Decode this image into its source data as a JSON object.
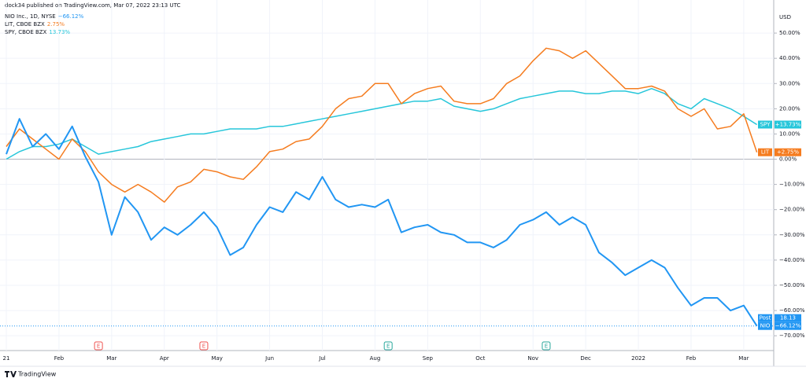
{
  "header": "dock34 published on TradingView.com, Mar 07, 2022 23:13 UTC",
  "footer": "TradingView",
  "chart_data": {
    "type": "line",
    "currency": "USD",
    "categories": [
      "21",
      null,
      null,
      null,
      "Feb",
      null,
      null,
      null,
      "Mar",
      null,
      null,
      null,
      "Apr",
      null,
      null,
      null,
      "May",
      null,
      null,
      null,
      "Jun",
      null,
      null,
      null,
      "Jul",
      null,
      null,
      null,
      "Aug",
      null,
      null,
      null,
      "Sep",
      null,
      null,
      null,
      "Oct",
      null,
      null,
      null,
      "Nov",
      null,
      null,
      null,
      "Dec",
      null,
      null,
      null,
      "2022",
      null,
      null,
      null,
      "Feb",
      null,
      null,
      null,
      "Mar",
      null
    ],
    "series": [
      {
        "name": "NIO Inc., 1D, NYSE",
        "short": "NIO",
        "color": "#2196f3",
        "change_label": "−66.12%",
        "badge_label": "−66.12%",
        "values": [
          2,
          16,
          5,
          10,
          4,
          13,
          1,
          -9,
          -30,
          -15,
          -21,
          -32,
          -27,
          -30,
          -26,
          -21,
          -27,
          -38,
          -35,
          -26,
          -19,
          -21,
          -13,
          -16,
          -7,
          -16,
          -19,
          -18,
          -19,
          -16,
          -29,
          -27,
          -26,
          -29,
          -30,
          -33,
          -33,
          -35,
          -32,
          -26,
          -24,
          -21,
          -26,
          -23,
          -26,
          -37,
          -41,
          -46,
          -43,
          -40,
          -43,
          -51,
          -58,
          -55,
          -55,
          -60,
          -58,
          -66.12
        ]
      },
      {
        "name": "LIT, CBOE BZX",
        "short": "LIT",
        "color": "#f57c1f",
        "change_label": "2.75%",
        "badge_label": "+2.75%",
        "values": [
          5,
          12,
          8,
          4,
          0,
          8,
          3,
          -5,
          -10,
          -13,
          -10,
          -13,
          -17,
          -11,
          -9,
          -4,
          -5,
          -7,
          -8,
          -3,
          3,
          4,
          7,
          8,
          13,
          20,
          24,
          25,
          30,
          30,
          22,
          26,
          28,
          29,
          23,
          22,
          22,
          24,
          30,
          33,
          39,
          44,
          43,
          40,
          43,
          38,
          33,
          28,
          28,
          29,
          27,
          20,
          17,
          20,
          12,
          13,
          18,
          2.75
        ]
      },
      {
        "name": "SPY, CBOE BZX",
        "short": "SPY",
        "color": "#26c6da",
        "change_label": "13.73%",
        "badge_label": "+13.73%",
        "values": [
          0,
          3,
          5,
          5,
          6,
          8,
          5,
          2,
          3,
          4,
          5,
          7,
          8,
          9,
          10,
          10,
          11,
          12,
          12,
          12,
          13,
          13,
          14,
          15,
          16,
          17,
          18,
          19,
          20,
          21,
          22,
          23,
          23,
          24,
          21,
          20,
          19,
          20,
          22,
          24,
          25,
          26,
          27,
          27,
          26,
          26,
          27,
          27,
          26,
          28,
          26,
          22,
          20,
          24,
          22,
          20,
          17,
          13.73
        ]
      }
    ],
    "post_market": {
      "label": "Post",
      "price": "18.13"
    },
    "events": [
      {
        "label": "E",
        "color": "#ef5350",
        "at": 7
      },
      {
        "label": "E",
        "color": "#ef5350",
        "at": 15
      },
      {
        "label": "E",
        "color": "#26a69a",
        "at": 29
      },
      {
        "label": "E",
        "color": "#26a69a",
        "at": 41
      }
    ],
    "ylim": [
      -74,
      60
    ],
    "yticks": [
      {
        "value": 50,
        "label": "50.00%"
      },
      {
        "value": 40,
        "label": "40.00%"
      },
      {
        "value": 30,
        "label": "30.00%"
      },
      {
        "value": 20,
        "label": "20.00%"
      },
      {
        "value": 10,
        "label": "10.00%"
      },
      {
        "value": 0,
        "label": "0.00%"
      },
      {
        "value": -10,
        "label": "−10.00%"
      },
      {
        "value": -20,
        "label": "−20.00%"
      },
      {
        "value": -30,
        "label": "−30.00%"
      },
      {
        "value": -40,
        "label": "−40.00%"
      },
      {
        "value": -50,
        "label": "−50.00%"
      },
      {
        "value": -60,
        "label": "−60.00%"
      },
      {
        "value": -70,
        "label": "−70.00%"
      }
    ],
    "grid": true
  }
}
